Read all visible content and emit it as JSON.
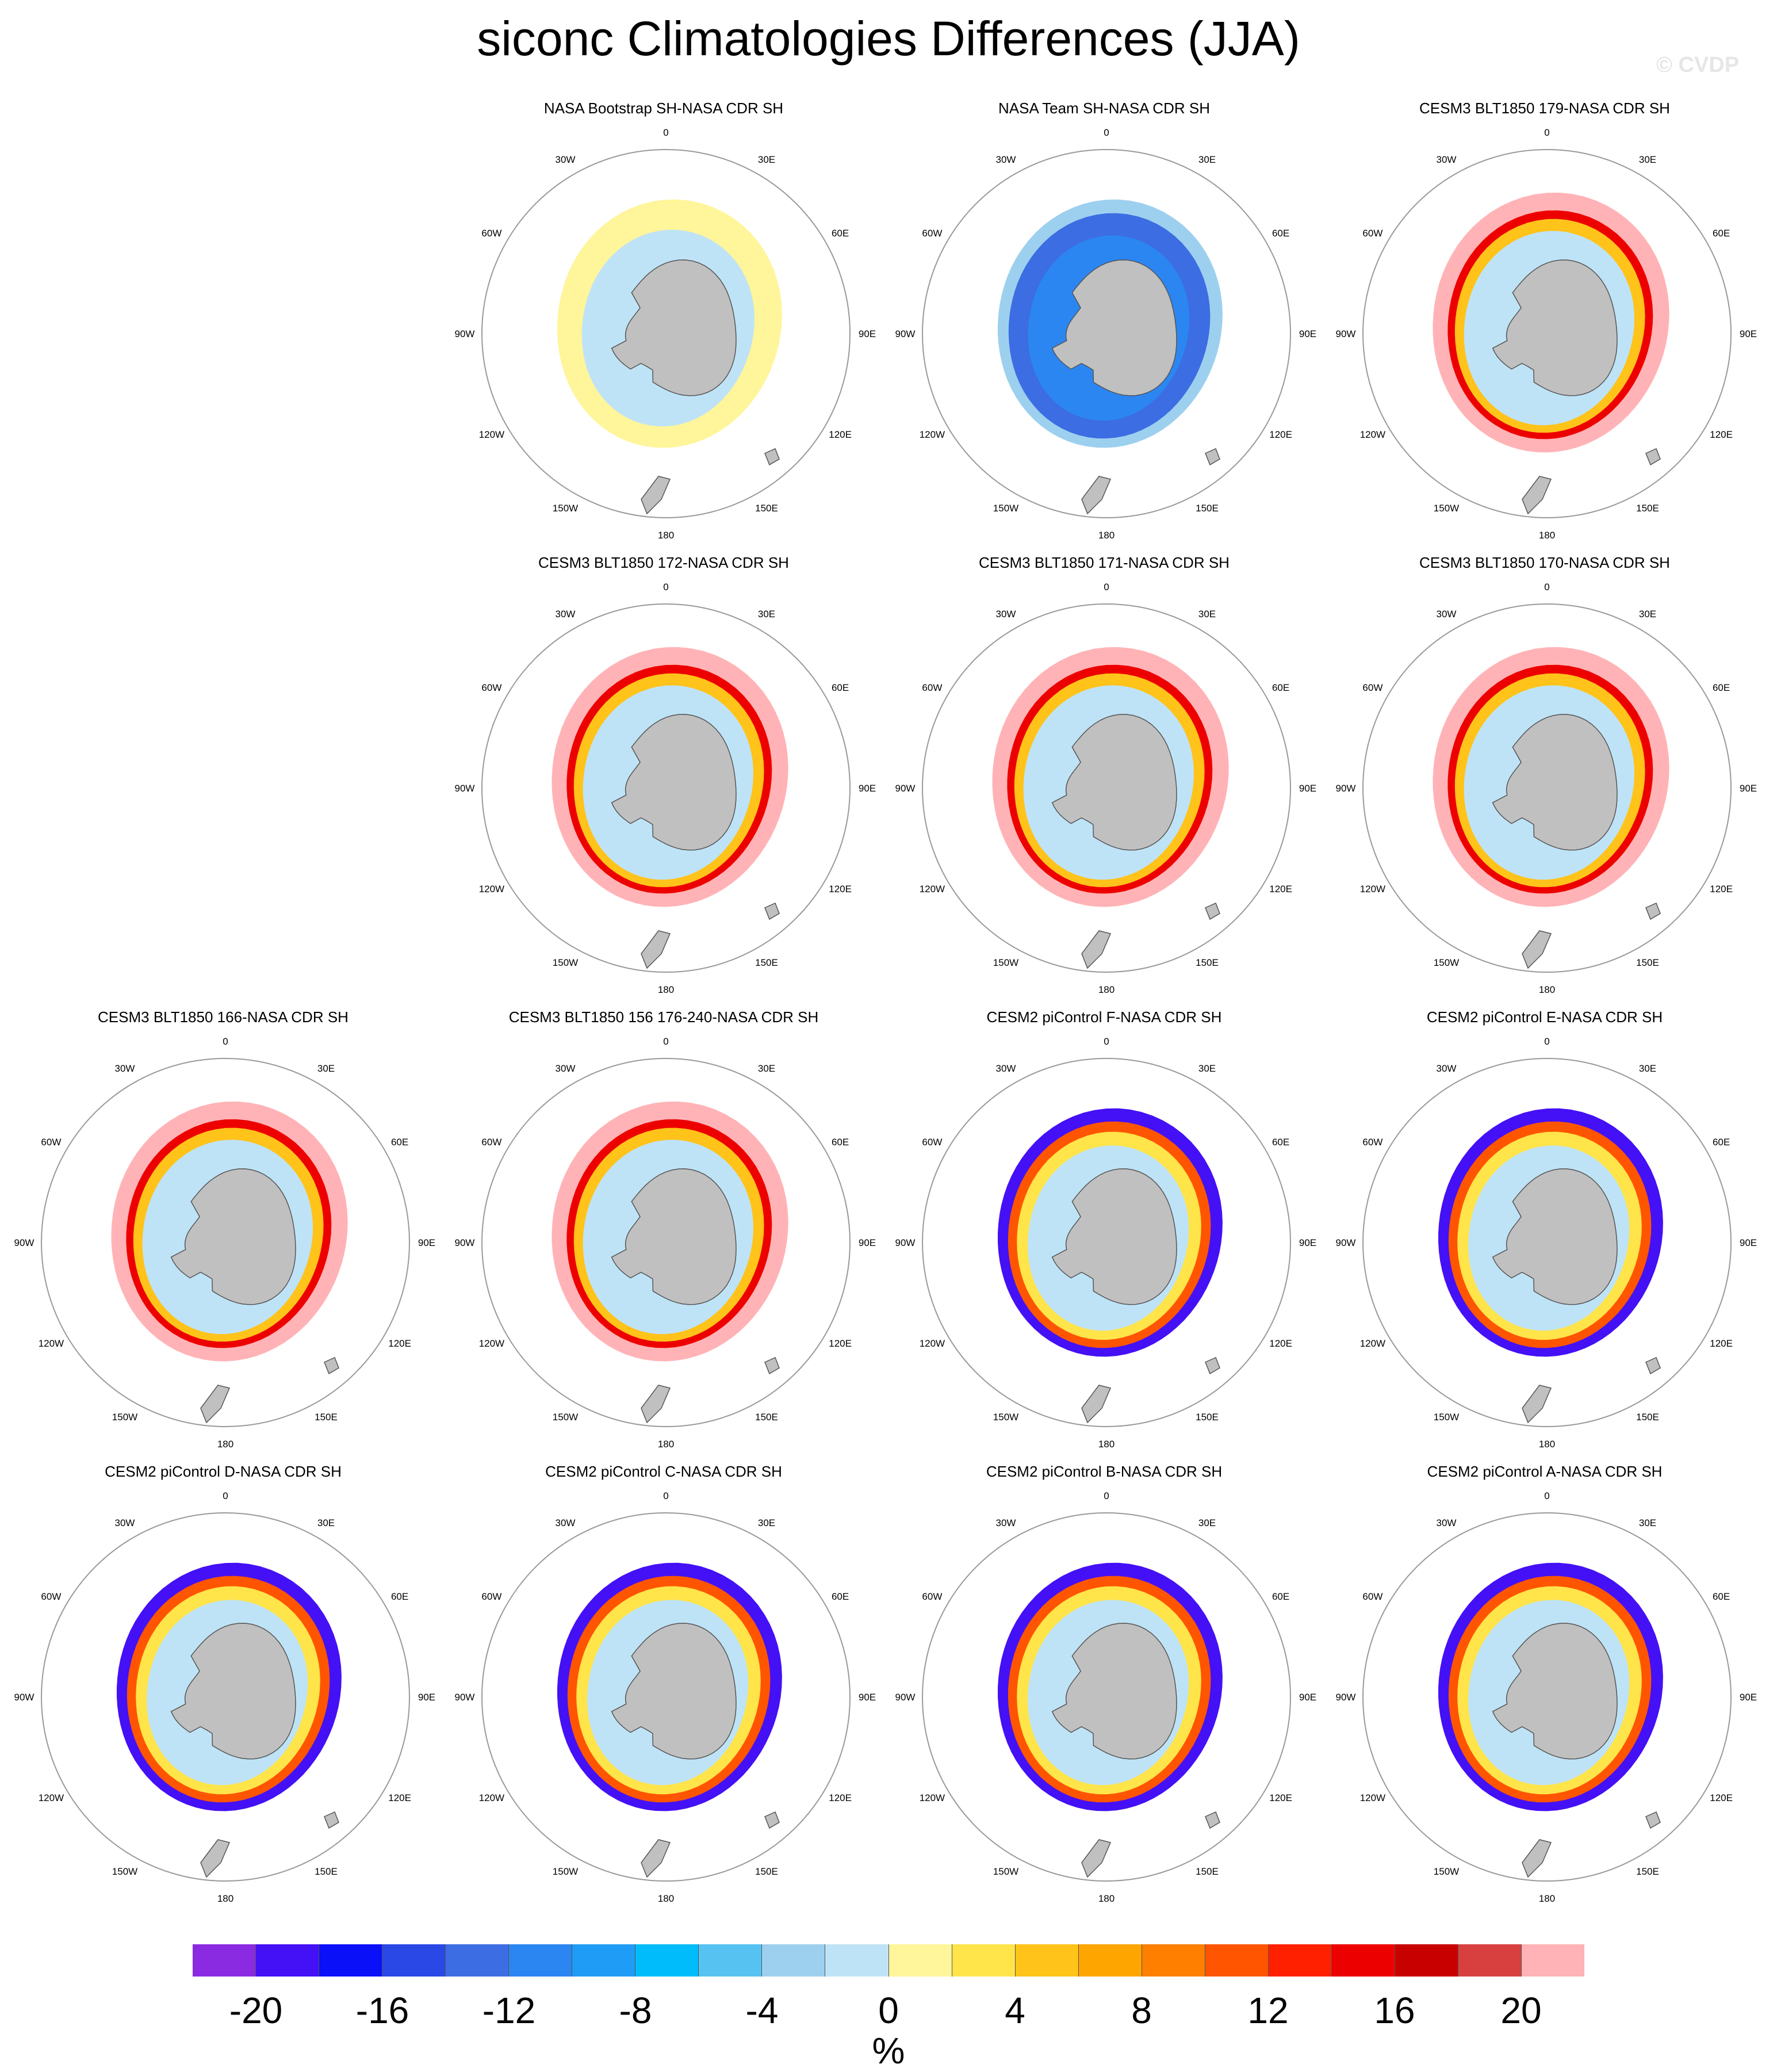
{
  "title": "siconc Climatologies Differences (JJA)",
  "watermark": "© CVDP",
  "lon_labels": [
    "0",
    "30E",
    "60E",
    "90E",
    "120E",
    "150E",
    "180",
    "150W",
    "120W",
    "90W",
    "60W",
    "30W"
  ],
  "panels": [
    {
      "title": "NASA Bootstrap SH-NASA CDR SH",
      "style": "bootstrap"
    },
    {
      "title": "NASA Team SH-NASA CDR SH",
      "style": "team"
    },
    {
      "title": "CESM3 BLT1850 179-NASA CDR SH",
      "style": "cesm3"
    },
    {
      "title": "CESM3 BLT1850 172-NASA CDR SH",
      "style": "cesm3"
    },
    {
      "title": "CESM3 BLT1850 171-NASA CDR SH",
      "style": "cesm3"
    },
    {
      "title": "CESM3 BLT1850 170-NASA CDR SH",
      "style": "cesm3"
    },
    {
      "title": "CESM3 BLT1850 166-NASA CDR SH",
      "style": "cesm3"
    },
    {
      "title": "CESM3 BLT1850 156 176-240-NASA CDR SH",
      "style": "cesm3"
    },
    {
      "title": "CESM2 piControl F-NASA CDR SH",
      "style": "cesm2"
    },
    {
      "title": "CESM2 piControl E-NASA CDR SH",
      "style": "cesm2"
    },
    {
      "title": "CESM2 piControl D-NASA CDR SH",
      "style": "cesm2"
    },
    {
      "title": "CESM2 piControl C-NASA CDR SH",
      "style": "cesm2"
    },
    {
      "title": "CESM2 piControl B-NASA CDR SH",
      "style": "cesm2"
    },
    {
      "title": "CESM2 piControl A-NASA CDR SH",
      "style": "cesm2"
    }
  ],
  "colorbar": {
    "colors": [
      "#8a2be2",
      "#4410f5",
      "#0a10f8",
      "#2a48e6",
      "#3c6de2",
      "#2b86f2",
      "#1f9cf6",
      "#00bcfa",
      "#55c2f2",
      "#9dd0ef",
      "#bfe3f6",
      "#fff59a",
      "#ffe44a",
      "#ffc31a",
      "#ffa500",
      "#ff7f00",
      "#ff5500",
      "#ff2000",
      "#ed0000",
      "#c80000",
      "#d84040",
      "#ffb3b6"
    ],
    "tick_labels": [
      "-20",
      "-16",
      "-12",
      "-8",
      "-4",
      "0",
      "4",
      "8",
      "12",
      "16",
      "20"
    ],
    "units": "%"
  }
}
